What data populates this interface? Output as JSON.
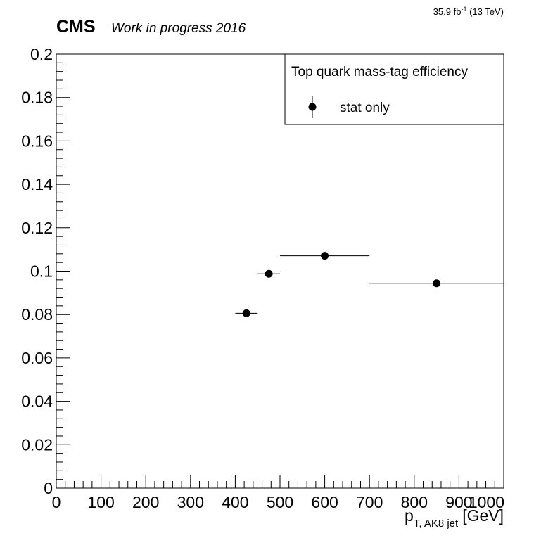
{
  "header": {
    "experiment": "CMS",
    "status": "Work in progress 2016",
    "lumi_value": "35.9 fb",
    "lumi_exp": "-1",
    "energy": " (13 TeV)"
  },
  "legend": {
    "title": "Top quark mass-tag efficiency",
    "entries": [
      "stat only"
    ],
    "placement": "top-right"
  },
  "chart_data": {
    "type": "scatter",
    "title": "Top quark mass-tag efficiency",
    "xlabel_main": "p",
    "xlabel_sub": "T, AK8 jet",
    "xlabel_unit": "[GeV]",
    "ylabel": "",
    "xlim": [
      0,
      1000
    ],
    "ylim": [
      0,
      0.2
    ],
    "xticks": [
      0,
      100,
      200,
      300,
      400,
      500,
      600,
      700,
      800,
      900,
      1000
    ],
    "xtick_labels": [
      "0",
      "100",
      "200",
      "300",
      "400",
      "500",
      "600",
      "700",
      "800",
      "900",
      "1000"
    ],
    "yticks": [
      0,
      0.02,
      0.04,
      0.06,
      0.08,
      0.1,
      0.12,
      0.14,
      0.16,
      0.18,
      0.2
    ],
    "ytick_labels": [
      "0",
      "0.02",
      "0.04",
      "0.06",
      "0.08",
      "0.1",
      "0.12",
      "0.14",
      "0.16",
      "0.18",
      "0.2"
    ],
    "grid": false,
    "series": [
      {
        "name": "stat only",
        "points": [
          {
            "x": 425,
            "xlow": 400,
            "xhigh": 450,
            "y": 0.0806,
            "yerr": 0.0003
          },
          {
            "x": 475,
            "xlow": 450,
            "xhigh": 500,
            "y": 0.0988,
            "yerr": 0.0003
          },
          {
            "x": 600,
            "xlow": 500,
            "xhigh": 700,
            "y": 0.1071,
            "yerr": 0.0002
          },
          {
            "x": 850,
            "xlow": 700,
            "xhigh": 1000,
            "y": 0.0944,
            "yerr": 0.0002
          }
        ]
      }
    ],
    "colors": {
      "marker": "#000000",
      "axis": "#000000",
      "background": "#ffffff"
    }
  }
}
